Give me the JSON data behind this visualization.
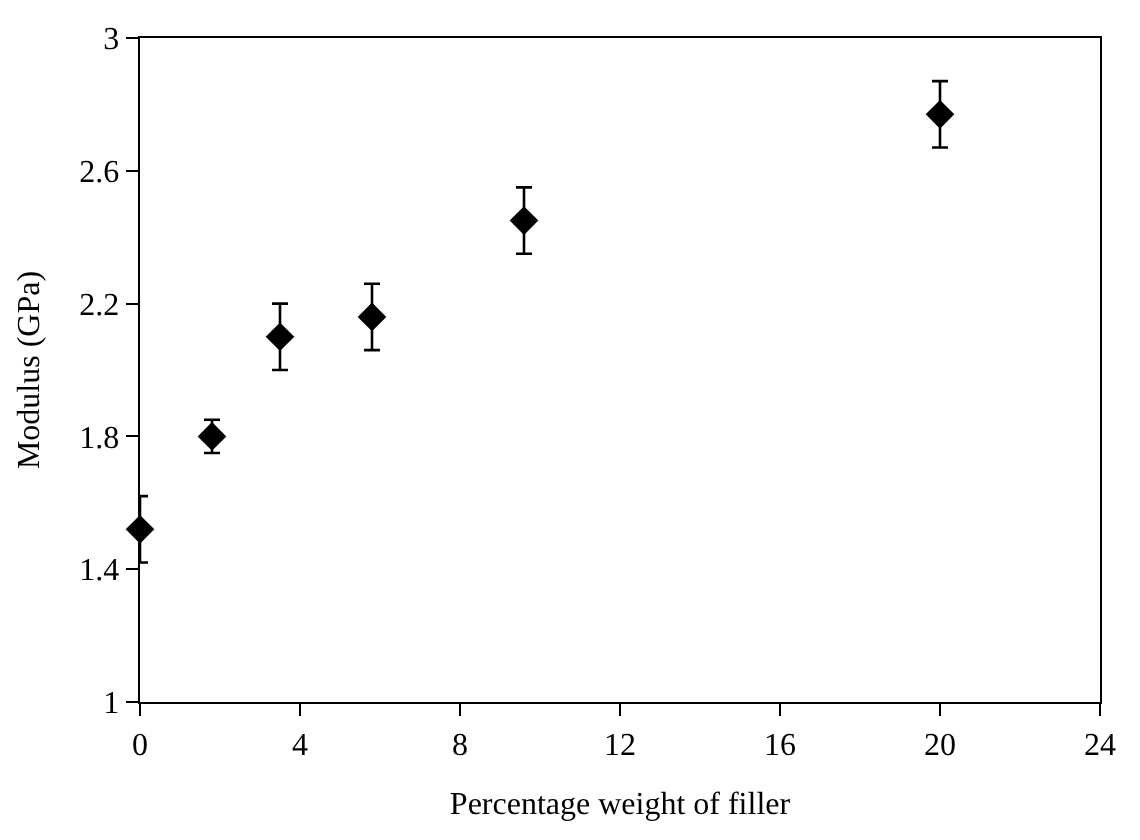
{
  "chart_data": {
    "type": "scatter",
    "xlabel": "Percentage weight of filler",
    "ylabel": "Modulus (GPa)",
    "x": [
      0,
      1.8,
      3.5,
      5.8,
      9.6,
      20
    ],
    "values": [
      1.52,
      1.8,
      2.1,
      2.16,
      2.45,
      2.77
    ],
    "errors": [
      0.1,
      0.05,
      0.1,
      0.1,
      0.1,
      0.1
    ],
    "color": "#000000",
    "marker": "diamond",
    "xlim": [
      0,
      24
    ],
    "xticks": [
      0,
      4,
      8,
      12,
      16,
      20,
      24
    ],
    "ylim": [
      1,
      3
    ],
    "yticks": [
      1,
      1.4,
      1.8,
      2.2,
      2.6,
      3
    ]
  }
}
